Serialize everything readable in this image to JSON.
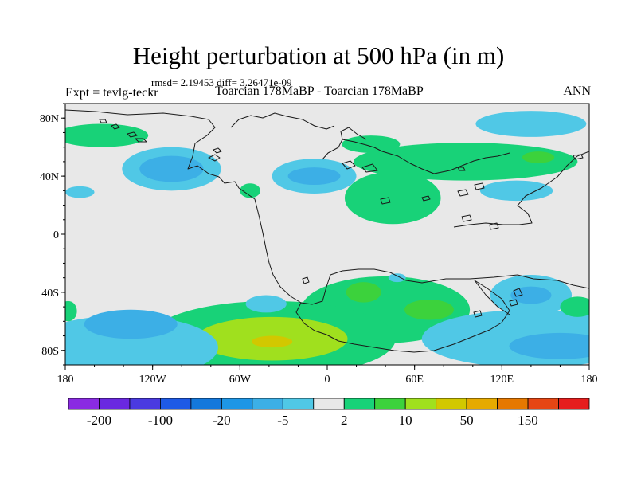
{
  "title": "Height perturbation at 500 hPa (in m)",
  "stats": "rmsd= 2.19453 diff= 3.26471e-09",
  "experiment": "Expt = tevlg-teckr",
  "case_label": "Toarcian 178MaBP - Toarcian 178MaBP",
  "season": "ANN",
  "axes": {
    "x_ticks": [
      {
        "value": -180,
        "label": "180"
      },
      {
        "value": -120,
        "label": "120W"
      },
      {
        "value": -60,
        "label": "60W"
      },
      {
        "value": 0,
        "label": "0"
      },
      {
        "value": 60,
        "label": "60E"
      },
      {
        "value": 120,
        "label": "120E"
      },
      {
        "value": 180,
        "label": "180"
      }
    ],
    "y_ticks": [
      {
        "value": 80,
        "label": "80N"
      },
      {
        "value": 40,
        "label": "40N"
      },
      {
        "value": 0,
        "label": "0"
      },
      {
        "value": -40,
        "label": "40S"
      },
      {
        "value": -80,
        "label": "80S"
      }
    ],
    "lon_range": [
      -180,
      180
    ],
    "lat_range": [
      -90,
      90
    ]
  },
  "colorbar": {
    "colors": [
      "#8a2be2",
      "#6a28e0",
      "#4a3ae0",
      "#1e5ae6",
      "#1478dc",
      "#1e96e6",
      "#3cafe6",
      "#50c8e6",
      "#e8e8e8",
      "#18d278",
      "#3cd23c",
      "#a0e01e",
      "#d2c800",
      "#e6aa00",
      "#e67800",
      "#e64614",
      "#e61e1e"
    ],
    "labels": [
      {
        "after_box": 1,
        "text": "-200"
      },
      {
        "after_box": 3,
        "text": "-100"
      },
      {
        "after_box": 5,
        "text": "-20"
      },
      {
        "after_box": 7,
        "text": "-5"
      },
      {
        "after_box": 9,
        "text": "2"
      },
      {
        "after_box": 11,
        "text": "10"
      },
      {
        "after_box": 13,
        "text": "50"
      },
      {
        "after_box": 15,
        "text": "150"
      }
    ]
  },
  "anomaly_regions": [
    {
      "lon": -107,
      "lat": 45,
      "rlon": 34,
      "rlat": 15,
      "color": "#50c8e6"
    },
    {
      "lon": -107,
      "lat": 45,
      "rlon": 22,
      "rlat": 9,
      "color": "#3cafe6"
    },
    {
      "lon": -155,
      "lat": 68,
      "rlon": 32,
      "rlat": 8,
      "color": "#18d278"
    },
    {
      "lon": -170,
      "lat": 29,
      "rlon": 10,
      "rlat": 4,
      "color": "#50c8e6"
    },
    {
      "lon": -53,
      "lat": 30,
      "rlon": 7,
      "rlat": 5,
      "color": "#18d278"
    },
    {
      "lon": -9,
      "lat": 40,
      "rlon": 29,
      "rlat": 12,
      "color": "#50c8e6"
    },
    {
      "lon": -9,
      "lat": 40,
      "rlon": 18,
      "rlat": 6,
      "color": "#3cafe6"
    },
    {
      "lon": 30,
      "lat": 62,
      "rlon": 20,
      "rlat": 6,
      "color": "#18d278"
    },
    {
      "lon": 95,
      "lat": 50,
      "rlon": 77,
      "rlat": 13,
      "color": "#18d278"
    },
    {
      "lon": 145,
      "lat": 53,
      "rlon": 11,
      "rlat": 4,
      "color": "#3cd23c"
    },
    {
      "lon": 140,
      "lat": 76,
      "rlon": 38,
      "rlat": 9,
      "color": "#50c8e6"
    },
    {
      "lon": 130,
      "lat": 30,
      "rlon": 25,
      "rlat": 7,
      "color": "#50c8e6"
    },
    {
      "lon": 45,
      "lat": 25,
      "rlon": 33,
      "rlat": 18,
      "color": "#18d278"
    },
    {
      "lon": 40,
      "lat": -52,
      "rlon": 58,
      "rlat": 23,
      "color": "#18d278"
    },
    {
      "lon": 25,
      "lat": -40,
      "rlon": 12,
      "rlat": 7,
      "color": "#3cd23c"
    },
    {
      "lon": 70,
      "lat": -52,
      "rlon": 17,
      "rlat": 7,
      "color": "#3cd23c"
    },
    {
      "lon": 48,
      "lat": -30,
      "rlon": 6,
      "rlat": 3,
      "color": "#50c8e6"
    },
    {
      "lon": -38,
      "lat": -72,
      "rlon": 85,
      "rlat": 26,
      "color": "#18d278"
    },
    {
      "lon": -38,
      "lat": -72,
      "rlon": 52,
      "rlat": 15,
      "color": "#a0e01e"
    },
    {
      "lon": -38,
      "lat": -74,
      "rlon": 14,
      "rlat": 4,
      "color": "#d2c800"
    },
    {
      "lon": -42,
      "lat": -48,
      "rlon": 14,
      "rlat": 6,
      "color": "#50c8e6"
    },
    {
      "lon": -140,
      "lat": -78,
      "rlon": 65,
      "rlat": 22,
      "color": "#50c8e6"
    },
    {
      "lon": -135,
      "lat": -62,
      "rlon": 32,
      "rlat": 10,
      "color": "#3cafe6"
    },
    {
      "lon": 140,
      "lat": -72,
      "rlon": 75,
      "rlat": 20,
      "color": "#50c8e6"
    },
    {
      "lon": 160,
      "lat": -77,
      "rlon": 35,
      "rlat": 9,
      "color": "#3cafe6"
    },
    {
      "lon": 140,
      "lat": -42,
      "rlon": 28,
      "rlat": 14,
      "color": "#50c8e6"
    },
    {
      "lon": 140,
      "lat": -42,
      "rlon": 14,
      "rlat": 6,
      "color": "#3cafe6"
    },
    {
      "lon": 172,
      "lat": -50,
      "rlon": 12,
      "rlat": 7,
      "color": "#18d278"
    },
    {
      "lon": -178,
      "lat": -53,
      "rlon": 6,
      "rlat": 7,
      "color": "#18d278"
    }
  ]
}
